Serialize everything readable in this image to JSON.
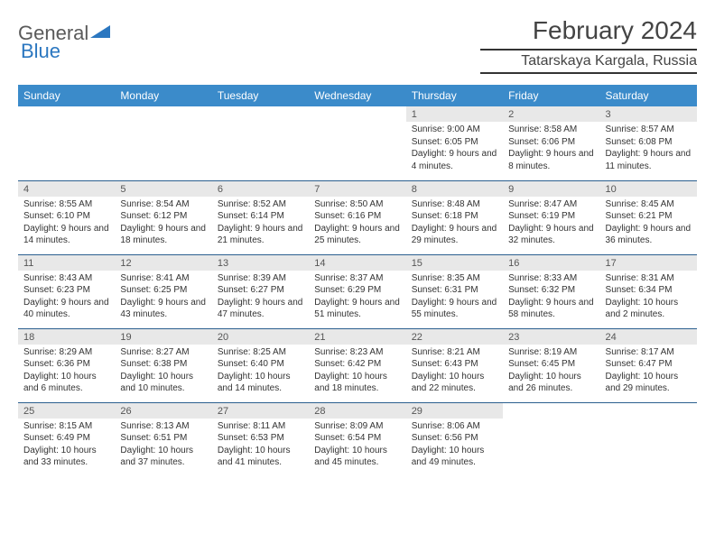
{
  "logo": {
    "part1": "General",
    "part2": "Blue"
  },
  "title": "February 2024",
  "location": "Tatarskaya Kargala, Russia",
  "colors": {
    "header_bg": "#3b8bca",
    "header_text": "#ffffff",
    "daynum_bg": "#e8e8e8",
    "row_border": "#2b5f8f",
    "logo_gray": "#5a5a5a",
    "logo_blue": "#2b77c0"
  },
  "day_labels": [
    "Sunday",
    "Monday",
    "Tuesday",
    "Wednesday",
    "Thursday",
    "Friday",
    "Saturday"
  ],
  "weeks": [
    [
      null,
      null,
      null,
      null,
      {
        "n": "1",
        "sunrise": "9:00 AM",
        "sunset": "6:05 PM",
        "daylight": "9 hours and 4 minutes."
      },
      {
        "n": "2",
        "sunrise": "8:58 AM",
        "sunset": "6:06 PM",
        "daylight": "9 hours and 8 minutes."
      },
      {
        "n": "3",
        "sunrise": "8:57 AM",
        "sunset": "6:08 PM",
        "daylight": "9 hours and 11 minutes."
      }
    ],
    [
      {
        "n": "4",
        "sunrise": "8:55 AM",
        "sunset": "6:10 PM",
        "daylight": "9 hours and 14 minutes."
      },
      {
        "n": "5",
        "sunrise": "8:54 AM",
        "sunset": "6:12 PM",
        "daylight": "9 hours and 18 minutes."
      },
      {
        "n": "6",
        "sunrise": "8:52 AM",
        "sunset": "6:14 PM",
        "daylight": "9 hours and 21 minutes."
      },
      {
        "n": "7",
        "sunrise": "8:50 AM",
        "sunset": "6:16 PM",
        "daylight": "9 hours and 25 minutes."
      },
      {
        "n": "8",
        "sunrise": "8:48 AM",
        "sunset": "6:18 PM",
        "daylight": "9 hours and 29 minutes."
      },
      {
        "n": "9",
        "sunrise": "8:47 AM",
        "sunset": "6:19 PM",
        "daylight": "9 hours and 32 minutes."
      },
      {
        "n": "10",
        "sunrise": "8:45 AM",
        "sunset": "6:21 PM",
        "daylight": "9 hours and 36 minutes."
      }
    ],
    [
      {
        "n": "11",
        "sunrise": "8:43 AM",
        "sunset": "6:23 PM",
        "daylight": "9 hours and 40 minutes."
      },
      {
        "n": "12",
        "sunrise": "8:41 AM",
        "sunset": "6:25 PM",
        "daylight": "9 hours and 43 minutes."
      },
      {
        "n": "13",
        "sunrise": "8:39 AM",
        "sunset": "6:27 PM",
        "daylight": "9 hours and 47 minutes."
      },
      {
        "n": "14",
        "sunrise": "8:37 AM",
        "sunset": "6:29 PM",
        "daylight": "9 hours and 51 minutes."
      },
      {
        "n": "15",
        "sunrise": "8:35 AM",
        "sunset": "6:31 PM",
        "daylight": "9 hours and 55 minutes."
      },
      {
        "n": "16",
        "sunrise": "8:33 AM",
        "sunset": "6:32 PM",
        "daylight": "9 hours and 58 minutes."
      },
      {
        "n": "17",
        "sunrise": "8:31 AM",
        "sunset": "6:34 PM",
        "daylight": "10 hours and 2 minutes."
      }
    ],
    [
      {
        "n": "18",
        "sunrise": "8:29 AM",
        "sunset": "6:36 PM",
        "daylight": "10 hours and 6 minutes."
      },
      {
        "n": "19",
        "sunrise": "8:27 AM",
        "sunset": "6:38 PM",
        "daylight": "10 hours and 10 minutes."
      },
      {
        "n": "20",
        "sunrise": "8:25 AM",
        "sunset": "6:40 PM",
        "daylight": "10 hours and 14 minutes."
      },
      {
        "n": "21",
        "sunrise": "8:23 AM",
        "sunset": "6:42 PM",
        "daylight": "10 hours and 18 minutes."
      },
      {
        "n": "22",
        "sunrise": "8:21 AM",
        "sunset": "6:43 PM",
        "daylight": "10 hours and 22 minutes."
      },
      {
        "n": "23",
        "sunrise": "8:19 AM",
        "sunset": "6:45 PM",
        "daylight": "10 hours and 26 minutes."
      },
      {
        "n": "24",
        "sunrise": "8:17 AM",
        "sunset": "6:47 PM",
        "daylight": "10 hours and 29 minutes."
      }
    ],
    [
      {
        "n": "25",
        "sunrise": "8:15 AM",
        "sunset": "6:49 PM",
        "daylight": "10 hours and 33 minutes."
      },
      {
        "n": "26",
        "sunrise": "8:13 AM",
        "sunset": "6:51 PM",
        "daylight": "10 hours and 37 minutes."
      },
      {
        "n": "27",
        "sunrise": "8:11 AM",
        "sunset": "6:53 PM",
        "daylight": "10 hours and 41 minutes."
      },
      {
        "n": "28",
        "sunrise": "8:09 AM",
        "sunset": "6:54 PM",
        "daylight": "10 hours and 45 minutes."
      },
      {
        "n": "29",
        "sunrise": "8:06 AM",
        "sunset": "6:56 PM",
        "daylight": "10 hours and 49 minutes."
      },
      null,
      null
    ]
  ],
  "labels": {
    "sunrise": "Sunrise:",
    "sunset": "Sunset:",
    "daylight": "Daylight:"
  }
}
